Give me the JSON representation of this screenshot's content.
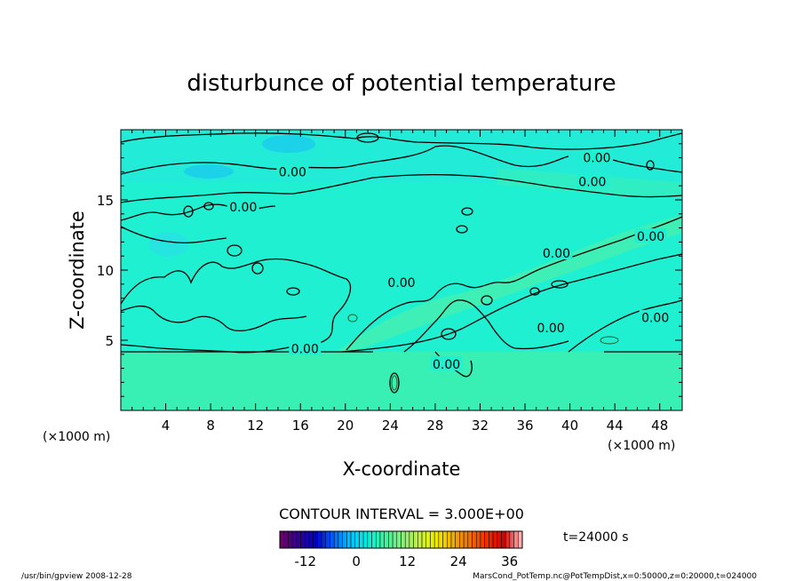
{
  "chart_data": {
    "type": "heatmap",
    "title": "disturbunce of potential temperature",
    "xlabel": "X-coordinate",
    "ylabel": "Z-coordinate",
    "x_unit": "(×1000 m)",
    "y_unit": "(×1000 m)",
    "x_ticks": [
      4,
      8,
      12,
      16,
      20,
      24,
      28,
      32,
      36,
      40,
      44,
      48
    ],
    "y_ticks": [
      5,
      10,
      15
    ],
    "xlim": [
      0,
      50
    ],
    "ylim": [
      0,
      20
    ],
    "contour_interval_text": "CONTOUR INTERVAL = 3.000E+00",
    "time_text": "t=24000 s",
    "contour_labels": [
      {
        "text": "0.00",
        "x": 15.3,
        "z": 17.0
      },
      {
        "text": "0.00",
        "x": 10.9,
        "z": 14.5
      },
      {
        "text": "0.00",
        "x": 42.4,
        "z": 18.0
      },
      {
        "text": "0.00",
        "x": 42.0,
        "z": 16.3
      },
      {
        "text": "0.00",
        "x": 47.2,
        "z": 12.4
      },
      {
        "text": "0.00",
        "x": 38.8,
        "z": 11.2
      },
      {
        "text": "0.00",
        "x": 25.0,
        "z": 9.1
      },
      {
        "text": "0.00",
        "x": 47.6,
        "z": 6.6
      },
      {
        "text": "0.00",
        "x": 38.3,
        "z": 5.9
      },
      {
        "text": "0.00",
        "x": 16.4,
        "z": 4.4
      },
      {
        "text": "0.00",
        "x": 29.0,
        "z": 3.3
      }
    ],
    "colorbar": {
      "ticks": [
        -12,
        0,
        12,
        24,
        36
      ],
      "range": [
        -18,
        39
      ],
      "colors": [
        "#6a006a",
        "#300090",
        "#0000c8",
        "#0060ff",
        "#00c0ff",
        "#00eee0",
        "#40f0a0",
        "#80f080",
        "#c0f040",
        "#f0f000",
        "#f0b000",
        "#f07000",
        "#f03000",
        "#d00000",
        "#ffb0b0"
      ]
    },
    "field_colors": {
      "base": "#1ff0d2",
      "upper": "#22ecd8",
      "lower": "#38f0b4",
      "cool": "#1cd2e8",
      "warm": "#58f0a4"
    }
  },
  "footer": {
    "left": "/usr/bin/gpview   2008-12-28",
    "right": "MarsCond_PotTemp.nc@PotTempDist,x=0:50000,z=0:20000,t=024000"
  }
}
